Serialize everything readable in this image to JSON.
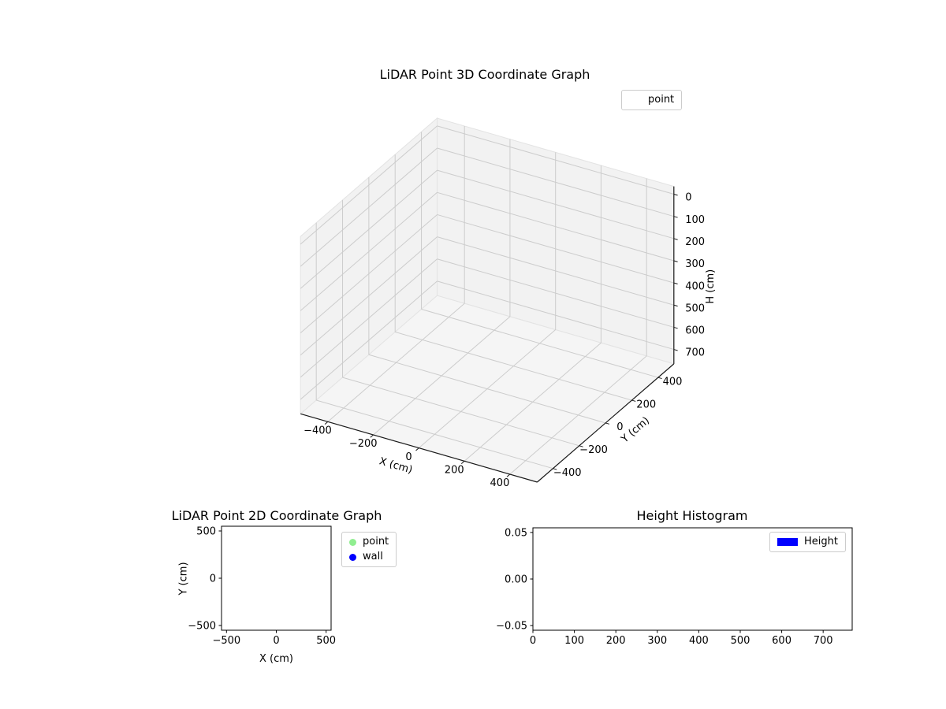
{
  "figure": {
    "background": "#ffffff"
  },
  "chart_data": [
    {
      "id": "lidar-3d",
      "type": "scatter3d",
      "title": "LiDAR Point 3D Coordinate Graph",
      "xlabel": "X (cm)",
      "ylabel": "Y (cm)",
      "zlabel": "H (cm)",
      "xlim": [
        -520,
        520
      ],
      "ylim": [
        -520,
        520
      ],
      "zlim": [
        -35,
        765
      ],
      "zaxis_inverted": true,
      "view": {
        "elev": 30,
        "azim": -60
      },
      "grid": true,
      "xticks": [
        -400,
        -200,
        0,
        200,
        400
      ],
      "xtick_labels": [
        "−400",
        "−200",
        "0",
        "200",
        "400"
      ],
      "yticks": [
        -400,
        -200,
        0,
        200,
        400
      ],
      "ytick_labels": [
        "−400",
        "−200",
        "0",
        "200",
        "400"
      ],
      "zticks": [
        0,
        100,
        200,
        300,
        400,
        500,
        600,
        700
      ],
      "ztick_labels": [
        "0",
        "100",
        "200",
        "300",
        "400",
        "500",
        "600",
        "700"
      ],
      "legend": [
        {
          "label": "point",
          "marker": "circle",
          "color": "none"
        }
      ],
      "series": [
        {
          "name": "point",
          "x": [],
          "y": [],
          "z": []
        }
      ],
      "pane_color": "#f2f2f2",
      "floor_color": "#f5f5f5",
      "grid_color": "#cccccc"
    },
    {
      "id": "lidar-2d",
      "type": "scatter",
      "title": "LiDAR Point 2D Coordinate Graph",
      "xlabel": "X (cm)",
      "ylabel": "Y (cm)",
      "xlim": [
        -550,
        550
      ],
      "ylim": [
        -550,
        550
      ],
      "grid": false,
      "xticks": [
        -500,
        0,
        500
      ],
      "xtick_labels": [
        "−500",
        "0",
        "500"
      ],
      "yticks": [
        -500,
        0,
        500
      ],
      "ytick_labels": [
        "−500",
        "0",
        "500"
      ],
      "legend": [
        {
          "label": "point",
          "marker": "circle",
          "color": "#90ee90"
        },
        {
          "label": "wall",
          "marker": "circle",
          "color": "#0000ff"
        }
      ],
      "series": [
        {
          "name": "point",
          "x": [],
          "y": []
        },
        {
          "name": "wall",
          "x": [],
          "y": []
        }
      ]
    },
    {
      "id": "height-histogram",
      "type": "bar",
      "title": "Height Histogram",
      "xlabel": "",
      "ylabel": "",
      "xlim": [
        0,
        770
      ],
      "ylim": [
        -0.055,
        0.055
      ],
      "grid": false,
      "xticks": [
        0,
        100,
        200,
        300,
        400,
        500,
        600,
        700
      ],
      "xtick_labels": [
        "0",
        "100",
        "200",
        "300",
        "400",
        "500",
        "600",
        "700"
      ],
      "yticks": [
        -0.05,
        0,
        0.05
      ],
      "ytick_labels": [
        "−0.05",
        "0.00",
        "0.05"
      ],
      "legend": [
        {
          "label": "Height",
          "marker": "rect",
          "color": "#0000ff"
        }
      ],
      "values": []
    }
  ]
}
